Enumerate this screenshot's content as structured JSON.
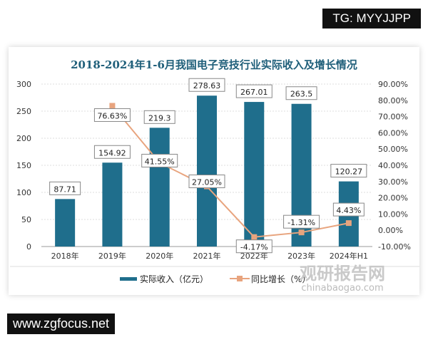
{
  "watermarks": {
    "top_right": "TG: MYYJJPP",
    "bottom_left": "www.zgfocus.net",
    "logo_cn": "观研报告网",
    "logo_en": "chinabaogao.com"
  },
  "chart_data": {
    "type": "bar",
    "title": "2018-2024年1-6月我国电子竞技行业实际收入及增长情况",
    "categories": [
      "2018年",
      "2019年",
      "2020年",
      "2021年",
      "2022年",
      "2023年",
      "2024年H1"
    ],
    "series": [
      {
        "name": "实际收入（亿元）",
        "type": "bar",
        "axis": "left",
        "color": "#1f6e8c",
        "values": [
          87.71,
          154.92,
          219.3,
          278.63,
          267.01,
          263.5,
          120.27
        ],
        "labels": [
          "87.71",
          "154.92",
          "219.3",
          "278.63",
          "267.01",
          "263.5",
          "120.27"
        ]
      },
      {
        "name": "同比增长（%）",
        "type": "line",
        "axis": "right",
        "color": "#e8a47e",
        "values": [
          null,
          76.63,
          41.55,
          27.05,
          -4.17,
          -1.31,
          4.43
        ],
        "labels": [
          "",
          "76.63%",
          "41.55%",
          "27.05%",
          "-4.17%",
          "-1.31%",
          "4.43%"
        ]
      }
    ],
    "left_axis": {
      "ylim": [
        0,
        300
      ],
      "ticks": [
        "0",
        "50",
        "100",
        "150",
        "200",
        "250",
        "300"
      ]
    },
    "right_axis": {
      "ylim": [
        -10,
        90
      ],
      "ticks": [
        "-10.00%",
        "0.00%",
        "10.00%",
        "20.00%",
        "30.00%",
        "40.00%",
        "50.00%",
        "60.00%",
        "70.00%",
        "80.00%",
        "90.00%"
      ]
    },
    "grid": true,
    "legend": "bottom"
  }
}
